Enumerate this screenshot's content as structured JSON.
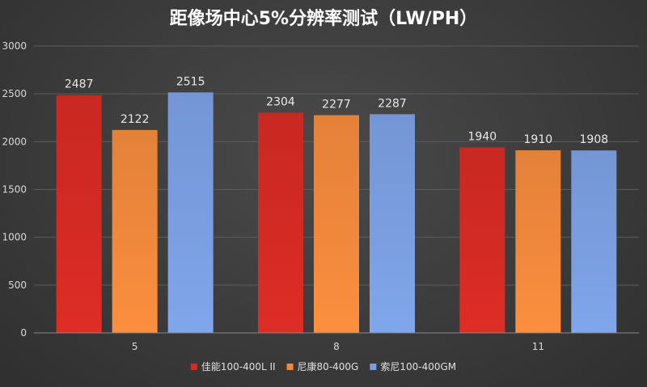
{
  "chart_data": {
    "type": "bar",
    "title": "距像场中心5%分辨率测试（LW/PH）",
    "xlabel": "",
    "ylabel": "",
    "categories": [
      "5",
      "8",
      "11"
    ],
    "series": [
      {
        "name": "佳能100-400L II",
        "values": [
          2487,
          2304,
          1940
        ],
        "color": "#d42a24"
      },
      {
        "name": "尼康80-400G",
        "values": [
          2122,
          2277,
          1910
        ],
        "color": "#f0883c"
      },
      {
        "name": "索尼100-400GM",
        "values": [
          2515,
          2287,
          1908
        ],
        "color": "#7a9ee0"
      }
    ],
    "ylim": [
      0,
      3000
    ],
    "yticks": [
      0,
      500,
      1000,
      1500,
      2000,
      2500,
      3000
    ],
    "grid": true,
    "legend": "bottom"
  }
}
